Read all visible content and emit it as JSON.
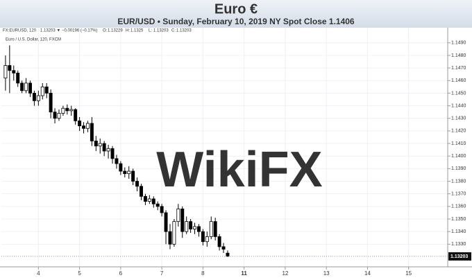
{
  "chart_data": {
    "type": "candlestick",
    "title": "Euro €",
    "subtitle": "EUR/USD • Sunday, February 10, 2019 NY Spot Close 1.1406",
    "symbol": "FX:EURUSD, 120",
    "change": "1.13203 ▼ −0.00196 (−0.17%)",
    "ohlc_labels": [
      "O:",
      "H:",
      "L:",
      "C:"
    ],
    "instrument": "Euro / U.S. Dollar, 120, FXCM",
    "watermark": "WikiFX",
    "up_color": "#ffffff",
    "down_color": "#000000",
    "wick_color": "#000000",
    "grid": true,
    "x": [
      3.2,
      3.3,
      3.4,
      3.5,
      3.6,
      3.7,
      3.8,
      3.9,
      4.0,
      4.1,
      4.2,
      4.3,
      4.4,
      4.5,
      4.6,
      4.7,
      4.8,
      4.9,
      5.0,
      5.1,
      5.2,
      5.3,
      5.4,
      5.5,
      5.6,
      5.7,
      5.8,
      5.9,
      6.0,
      6.1,
      6.2,
      6.3,
      6.4,
      6.5,
      6.6,
      6.7,
      6.8,
      6.9,
      7.0,
      7.1,
      7.2,
      7.3,
      7.4,
      7.5,
      7.6,
      7.7,
      7.8,
      7.9,
      8.0,
      8.1,
      8.2,
      8.3,
      8.4,
      8.5,
      8.6
    ],
    "open": [
      1.1462,
      1.1472,
      1.1468,
      1.1466,
      1.1458,
      1.1452,
      1.1458,
      1.145,
      1.1444,
      1.1448,
      1.1455,
      1.145,
      1.1435,
      1.143,
      1.1434,
      1.1438,
      1.1436,
      1.1437,
      1.1428,
      1.1424,
      1.1422,
      1.1426,
      1.1412,
      1.1408,
      1.141,
      1.1404,
      1.1406,
      1.1398,
      1.1394,
      1.1388,
      1.1386,
      1.1388,
      1.138,
      1.1376,
      1.1368,
      1.1364,
      1.1366,
      1.1362,
      1.136,
      1.1355,
      1.134,
      1.133,
      1.1348,
      1.1358,
      1.134,
      1.1348,
      1.1342,
      1.1344,
      1.134,
      1.1332,
      1.1336,
      1.1348,
      1.1336,
      1.1328,
      1.13229
    ],
    "high": [
      1.148,
      1.1488,
      1.1472,
      1.1468,
      1.146,
      1.1462,
      1.146,
      1.1452,
      1.1452,
      1.1458,
      1.1458,
      1.1453,
      1.1438,
      1.1437,
      1.144,
      1.1441,
      1.144,
      1.1438,
      1.1431,
      1.1427,
      1.1428,
      1.1431,
      1.1416,
      1.1414,
      1.1412,
      1.1409,
      1.1408,
      1.1401,
      1.1396,
      1.1391,
      1.1392,
      1.139,
      1.1383,
      1.1378,
      1.137,
      1.1369,
      1.1368,
      1.1364,
      1.1362,
      1.1357,
      1.1346,
      1.135,
      1.1362,
      1.136,
      1.1352,
      1.135,
      1.1347,
      1.1346,
      1.1342,
      1.134,
      1.1352,
      1.1351,
      1.1338,
      1.1331,
      1.1325
    ],
    "low": [
      1.1452,
      1.145,
      1.146,
      1.1455,
      1.145,
      1.145,
      1.1447,
      1.144,
      1.144,
      1.1445,
      1.1446,
      1.143,
      1.1426,
      1.1428,
      1.1432,
      1.1433,
      1.1432,
      1.1425,
      1.142,
      1.1418,
      1.1419,
      1.1408,
      1.1404,
      1.1402,
      1.14,
      1.1398,
      1.1394,
      1.139,
      1.1385,
      1.1383,
      1.1382,
      1.1377,
      1.1372,
      1.1365,
      1.1361,
      1.1362,
      1.1359,
      1.1357,
      1.1352,
      1.133,
      1.1326,
      1.1328,
      1.1344,
      1.1335,
      1.1338,
      1.1339,
      1.1338,
      1.1336,
      1.1329,
      1.1328,
      1.1334,
      1.1333,
      1.1325,
      1.1323,
      1.13203
    ],
    "close": [
      1.1472,
      1.1468,
      1.1466,
      1.1458,
      1.1452,
      1.1458,
      1.145,
      1.1444,
      1.1448,
      1.1455,
      1.145,
      1.1435,
      1.143,
      1.1434,
      1.1438,
      1.1436,
      1.1437,
      1.1428,
      1.1424,
      1.1422,
      1.1426,
      1.1412,
      1.1408,
      1.141,
      1.1404,
      1.1406,
      1.1398,
      1.1394,
      1.1388,
      1.1386,
      1.1388,
      1.138,
      1.1376,
      1.1368,
      1.1364,
      1.1366,
      1.1362,
      1.136,
      1.1355,
      1.134,
      1.133,
      1.1348,
      1.1358,
      1.134,
      1.1348,
      1.1342,
      1.1344,
      1.134,
      1.1332,
      1.1336,
      1.1348,
      1.1336,
      1.1328,
      1.1326,
      1.13203
    ],
    "xlim": [
      3.1,
      15.95
    ],
    "xticks": [
      4,
      5,
      6,
      7,
      8,
      11,
      12,
      13,
      14,
      15
    ],
    "bold_xticks": [
      11
    ],
    "ylim": [
      1.1312,
      1.1502
    ],
    "yticks": [
      {
        "value": 1.133,
        "label": "1.1330"
      },
      {
        "value": 1.134,
        "label": "1.1340"
      },
      {
        "value": 1.135,
        "label": "1.1350"
      },
      {
        "value": 1.136,
        "label": "1.1360"
      },
      {
        "value": 1.137,
        "label": "1.1370"
      },
      {
        "value": 1.138,
        "label": "1.1380"
      },
      {
        "value": 1.139,
        "label": "1.1390"
      },
      {
        "value": 1.14,
        "label": "1.1400"
      },
      {
        "value": 1.141,
        "label": "1.1410"
      },
      {
        "value": 1.142,
        "label": "1.1420"
      },
      {
        "value": 1.143,
        "label": "1.1430"
      },
      {
        "value": 1.144,
        "label": "1.1440"
      },
      {
        "value": 1.145,
        "label": "1.1450"
      },
      {
        "value": 1.146,
        "label": "1.1460"
      },
      {
        "value": 1.147,
        "label": "1.1470"
      },
      {
        "value": 1.148,
        "label": "1.1480"
      },
      {
        "value": 1.149,
        "label": "1.1490"
      }
    ]
  }
}
